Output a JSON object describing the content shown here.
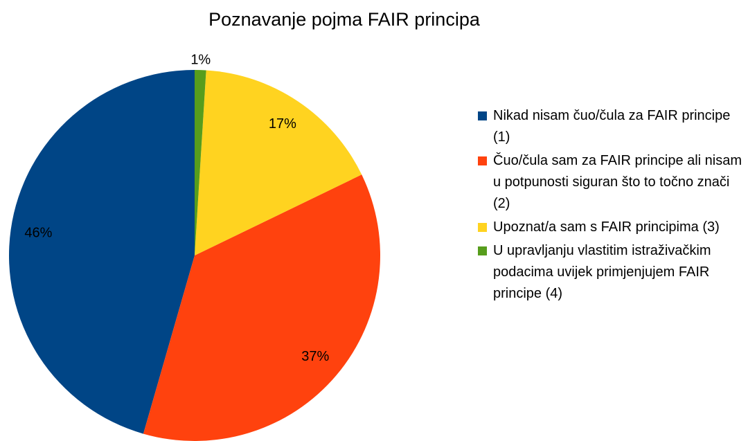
{
  "chart_data": {
    "type": "pie",
    "title": "Poznavanje pojma FAIR principa",
    "categories": [
      "Nikad nisam čuo/čula za FAIR principe (1)",
      "Čuo/čula sam za FAIR principe ali nisam u potpunosti siguran što to točno znači (2)",
      "Upoznat/a sam s FAIR principima (3)",
      "U upravljanju vlastitim istraživačkim podacima uvijek primjenjujem FAIR principe (4)"
    ],
    "values": [
      46,
      37,
      17,
      1
    ],
    "value_labels": [
      "46%",
      "37%",
      "17%",
      "1%"
    ],
    "colors": [
      "#004586",
      "#ff420e",
      "#ffd320",
      "#579d1c"
    ],
    "legend": "right"
  }
}
